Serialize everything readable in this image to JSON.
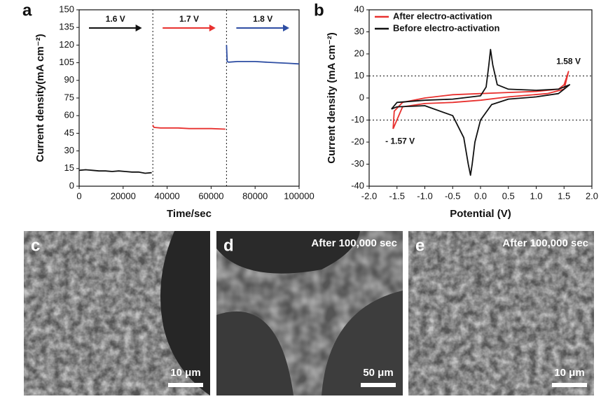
{
  "chart_data": [
    {
      "type": "line",
      "panel_label": "a",
      "xlabel": "Time/sec",
      "ylabel": "Current density(mA cm⁻²)",
      "xlim": [
        0,
        100000
      ],
      "xticks": [
        0,
        20000,
        40000,
        60000,
        80000,
        100000
      ],
      "ylim": [
        0,
        150
      ],
      "yticks": [
        0,
        15,
        30,
        45,
        60,
        75,
        90,
        105,
        120,
        135,
        150
      ],
      "vlines": [
        33500,
        67000
      ],
      "legend": "none",
      "series_label_arrows": true,
      "series": [
        {
          "name": "1.6 V",
          "color": "#111111",
          "x": [
            0,
            3000,
            6000,
            9000,
            12000,
            15000,
            18000,
            21000,
            24000,
            27000,
            30000,
            33000
          ],
          "values": [
            13.5,
            14,
            13.5,
            13,
            13,
            12.5,
            13,
            12.5,
            12,
            12,
            11,
            11.5
          ]
        },
        {
          "name": "1.7 V",
          "color": "#e8312f",
          "x": [
            33500,
            34000,
            37000,
            40000,
            45000,
            50000,
            55000,
            60000,
            66500
          ],
          "values": [
            52,
            50,
            49.5,
            49.5,
            49.5,
            49,
            49,
            49,
            48.5
          ]
        },
        {
          "name": "1.8 V",
          "color": "#2e4ea3",
          "x": [
            67000,
            67300,
            68000,
            72000,
            76000,
            80000,
            85000,
            90000,
            95000,
            100000
          ],
          "values": [
            120,
            106,
            105.5,
            106,
            106,
            106,
            105.5,
            105,
            104.5,
            104
          ]
        }
      ]
    },
    {
      "type": "line",
      "panel_label": "b",
      "xlabel": "Potential (V)",
      "ylabel": "Current density (mA cm⁻²)",
      "xlim": [
        -2,
        2
      ],
      "xticks": [
        {
          "value": -2,
          "label": "-2.0"
        },
        -1.5,
        {
          "value": -1,
          "label": "-1.0"
        },
        -0.5,
        {
          "value": 0,
          "label": "0.0"
        },
        0.5,
        {
          "value": 1,
          "label": "1.0"
        },
        1.5,
        {
          "value": 2,
          "label": "2.0"
        }
      ],
      "ylim": [
        -40,
        40
      ],
      "yticks": [
        -40,
        -30,
        -20,
        -10,
        0,
        10,
        20,
        30,
        40
      ],
      "hlines": [
        10,
        -10
      ],
      "legend": "upper left",
      "annotations": [
        {
          "text": "1.58 V",
          "color": "#e8312f"
        },
        {
          "text": "- 1.57 V",
          "color": "#e8312f"
        }
      ],
      "series": [
        {
          "name": "After electro-activation",
          "color": "#e8312f",
          "x": [
            -1.57,
            -1.55,
            -1.4,
            -1.0,
            -0.5,
            0,
            0.5,
            1.0,
            1.4,
            1.5,
            1.58,
            1.5,
            1.2,
            0.5,
            0,
            -0.5,
            -1.0,
            -1.4,
            -1.57
          ],
          "values": [
            -14,
            -6,
            -2,
            0,
            1.5,
            2,
            2.5,
            3,
            4,
            6,
            12,
            4,
            2,
            0.5,
            -1,
            -2,
            -2.5,
            -4,
            -14
          ]
        },
        {
          "name": "Before electro-activation",
          "color": "#111111",
          "x": [
            -1.6,
            -1.5,
            -1.0,
            -0.5,
            0.0,
            0.1,
            0.15,
            0.18,
            0.22,
            0.3,
            0.5,
            1.0,
            1.4,
            1.6,
            1.4,
            1.0,
            0.5,
            0.2,
            0.0,
            -0.1,
            -0.15,
            -0.18,
            -0.22,
            -0.3,
            -0.5,
            -1.0,
            -1.5,
            -1.6
          ],
          "values": [
            -5,
            -2,
            -1,
            -0.5,
            1,
            5,
            15,
            22,
            15,
            6,
            4,
            3.5,
            4,
            6,
            2,
            0.5,
            -0.5,
            -3,
            -10,
            -20,
            -30,
            -35,
            -30,
            -18,
            -8,
            -3.5,
            -4,
            -5
          ]
        }
      ]
    }
  ],
  "panels": [
    {
      "label": "c",
      "scale_bar": "10 μm"
    },
    {
      "label": "d",
      "note": "After 100,000 sec",
      "scale_bar": "50 μm"
    },
    {
      "label": "e",
      "note": "After 100,000 sec",
      "scale_bar": "10 μm"
    }
  ]
}
